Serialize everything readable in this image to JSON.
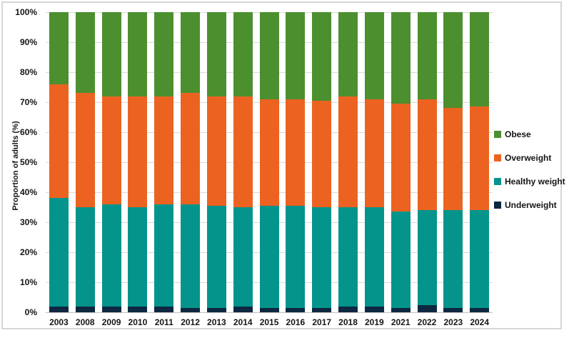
{
  "chart_data": {
    "type": "bar",
    "variant": "stacked-column-100",
    "title": "",
    "xlabel": "",
    "ylabel": "Proportion of adults (%)",
    "ylim": [
      0,
      100
    ],
    "y_tick_labels": [
      "0%",
      "10%",
      "20%",
      "30%",
      "40%",
      "50%",
      "60%",
      "70%",
      "80%",
      "90%",
      "100%"
    ],
    "grid": "horizontal",
    "legend_position": "right",
    "categories": [
      "2003",
      "2008",
      "2009",
      "2010",
      "2011",
      "2012",
      "2013",
      "2014",
      "2015",
      "2016",
      "2017",
      "2018",
      "2019",
      "2021",
      "2022",
      "2023",
      "2024"
    ],
    "series": [
      {
        "name": "Obese",
        "color": "#4C8F2F",
        "values": [
          24,
          27,
          28,
          28,
          28,
          27,
          28,
          28,
          29,
          29,
          29.5,
          28,
          29,
          30.5,
          29,
          32,
          31.5
        ]
      },
      {
        "name": "Overweight",
        "color": "#EC6321",
        "values": [
          38,
          38,
          36,
          37,
          36,
          37,
          36.5,
          37,
          35.5,
          35.5,
          35.5,
          37,
          36,
          36,
          37,
          34,
          34.5
        ]
      },
      {
        "name": "Healthy weight",
        "color": "#04948C",
        "values": [
          36,
          33,
          34,
          33,
          34,
          34.5,
          34,
          33,
          34,
          34,
          33.5,
          33,
          33,
          32,
          31.5,
          32.5,
          32.5
        ]
      },
      {
        "name": "Underweight",
        "color": "#0E2841",
        "values": [
          2,
          2,
          2,
          2,
          2,
          1.5,
          1.5,
          2,
          1.5,
          1.5,
          1.5,
          2,
          2,
          1.5,
          2.5,
          1.5,
          1.5
        ]
      }
    ],
    "colors": {
      "gridline": "#d9d9d9",
      "axis_line": "#bfbfbf",
      "frame_border": "#d6d6d6",
      "text": "#151515"
    }
  }
}
